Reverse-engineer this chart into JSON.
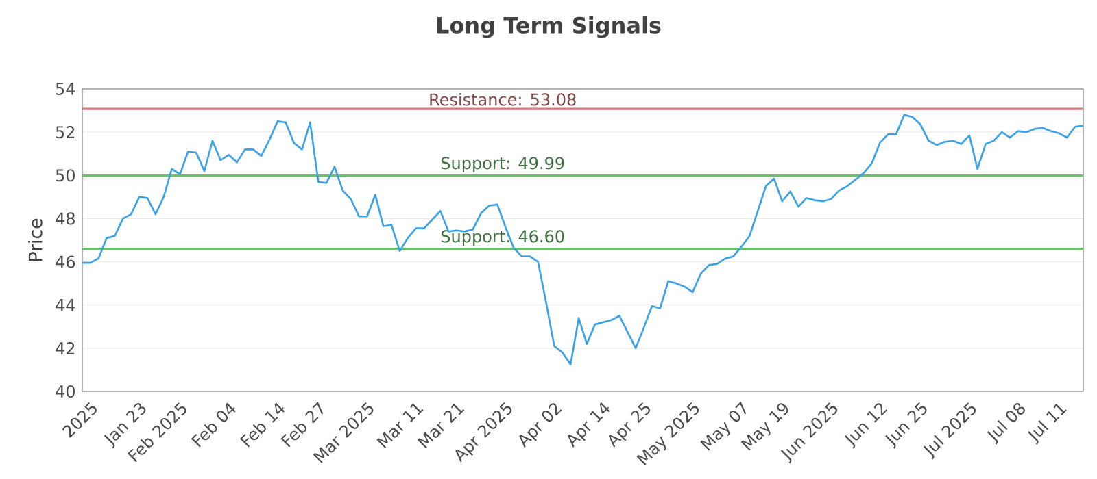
{
  "chart_data": {
    "type": "line",
    "title": "Long Term Signals",
    "ylabel": "Price",
    "categories": [
      null,
      "2025",
      null,
      null,
      null,
      null,
      null,
      "Jan 23",
      null,
      null,
      null,
      null,
      "Feb 2025",
      null,
      null,
      null,
      null,
      null,
      "Feb 04",
      null,
      null,
      null,
      null,
      null,
      "Feb 14",
      null,
      null,
      null,
      null,
      "Feb 27",
      null,
      null,
      null,
      null,
      null,
      "Mar 2025",
      null,
      null,
      null,
      null,
      null,
      "Mar 11",
      null,
      null,
      null,
      null,
      "Mar 21",
      null,
      null,
      null,
      null,
      null,
      "Apr 2025",
      null,
      null,
      null,
      null,
      null,
      "Apr 02",
      null,
      null,
      null,
      null,
      null,
      "Apr 14",
      null,
      null,
      null,
      null,
      "Apr 25",
      null,
      null,
      null,
      null,
      null,
      "May 2025",
      null,
      null,
      null,
      null,
      null,
      "May 07",
      null,
      null,
      null,
      null,
      "May 19",
      null,
      null,
      null,
      null,
      null,
      "Jun 2025",
      null,
      null,
      null,
      null,
      null,
      "Jun 12",
      null,
      null,
      null,
      null,
      "Jun 25",
      null,
      null,
      null,
      null,
      null,
      "Jul 2025",
      null,
      null,
      null,
      null,
      null,
      "Jul 08",
      null,
      null,
      null,
      null,
      "Jul 11",
      null,
      null,
      null
    ],
    "series": [
      {
        "color": "#3ba2e8",
        "values": [
          45.95,
          45.95,
          46.16,
          47.1,
          47.2,
          48.0,
          48.2,
          49.0,
          48.95,
          48.2,
          49.0,
          50.3,
          50.05,
          51.1,
          51.05,
          50.2,
          51.6,
          50.7,
          50.95,
          50.6,
          51.2,
          51.2,
          50.9,
          51.65,
          52.5,
          52.45,
          51.5,
          51.2,
          52.45,
          49.7,
          49.65,
          50.4,
          49.3,
          48.9,
          48.1,
          48.1,
          49.1,
          47.65,
          47.7,
          46.5,
          47.1,
          47.55,
          47.55,
          47.95,
          48.35,
          47.4,
          47.45,
          47.4,
          47.5,
          48.25,
          48.6,
          48.65,
          47.6,
          46.65,
          46.25,
          46.25,
          46.0,
          44.1,
          42.1,
          41.8,
          41.25,
          43.4,
          42.2,
          43.1,
          43.2,
          43.3,
          43.5,
          42.75,
          42.0,
          42.95,
          43.95,
          43.85,
          45.1,
          45.0,
          44.85,
          44.6,
          45.45,
          45.85,
          45.9,
          46.15,
          46.25,
          46.7,
          47.2,
          48.35,
          49.5,
          49.85,
          48.8,
          49.25,
          48.55,
          48.95,
          48.85,
          48.8,
          48.9,
          49.3,
          49.5,
          49.8,
          50.1,
          50.55,
          51.5,
          51.9,
          51.9,
          52.8,
          52.7,
          52.35,
          51.6,
          51.4,
          51.55,
          51.6,
          51.45,
          51.85,
          50.3,
          51.45,
          51.6,
          52.0,
          51.75,
          52.05,
          52.0,
          52.15,
          52.2,
          52.05,
          51.95,
          51.75,
          52.25,
          52.3
        ]
      }
    ],
    "ylim": [
      40,
      54
    ],
    "yticks": [
      40,
      42,
      44,
      46,
      48,
      50,
      52,
      54
    ],
    "grid": "y",
    "ref_lines": [
      {
        "axis": "y",
        "value": 53.08,
        "label": "Resistance: 53.08",
        "color": "#d9777a"
      },
      {
        "axis": "y",
        "value": 49.99,
        "label": "Support: 49.99",
        "color": "#6cbf6c"
      },
      {
        "axis": "y",
        "value": 46.6,
        "label": "Support: 46.60",
        "color": "#6cbf6c"
      }
    ]
  }
}
